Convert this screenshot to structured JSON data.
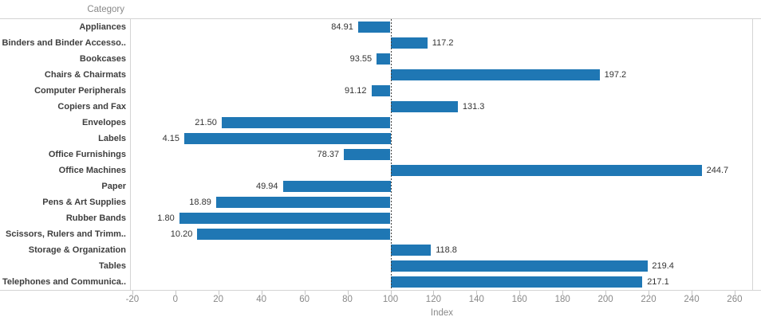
{
  "chart_data": {
    "type": "bar",
    "orientation": "horizontal",
    "row_axis_title": "Category",
    "xlabel": "Index",
    "categories": [
      "Appliances",
      "Binders and Binder Accesso..",
      "Bookcases",
      "Chairs & Chairmats",
      "Computer Peripherals",
      "Copiers and Fax",
      "Envelopes",
      "Labels",
      "Office Furnishings",
      "Office Machines",
      "Paper",
      "Pens & Art Supplies",
      "Rubber Bands",
      "Scissors, Rulers and Trimm..",
      "Storage & Organization",
      "Tables",
      "Telephones and Communica.."
    ],
    "values": [
      84.91,
      117.2,
      93.55,
      197.2,
      91.12,
      131.3,
      21.5,
      4.15,
      78.37,
      244.7,
      49.94,
      18.89,
      1.8,
      10.2,
      118.8,
      219.4,
      217.1
    ],
    "value_labels": [
      "84.91",
      "117.2",
      "93.55",
      "197.2",
      "91.12",
      "131.3",
      "21.50",
      "4.15",
      "78.37",
      "244.7",
      "49.94",
      "18.89",
      "1.80",
      "10.20",
      "118.8",
      "219.4",
      "217.1"
    ],
    "x_ticks": [
      -20,
      0,
      20,
      40,
      60,
      80,
      100,
      120,
      140,
      160,
      180,
      200,
      220,
      240,
      260
    ],
    "xlim": [
      -20.7,
      268.2
    ],
    "reference_line": 100,
    "baseline": 100,
    "bar_color": "#1f77b4",
    "grid": "off",
    "legend": "none",
    "title": ""
  },
  "colors": {
    "bar": "#1f77b4",
    "border": "#d4d4d4",
    "category_label": "#3e3e3e",
    "value_label": "#333333",
    "tick_label": "#898989",
    "axis_title": "#898989",
    "reference_line": "#3f3f3f"
  }
}
